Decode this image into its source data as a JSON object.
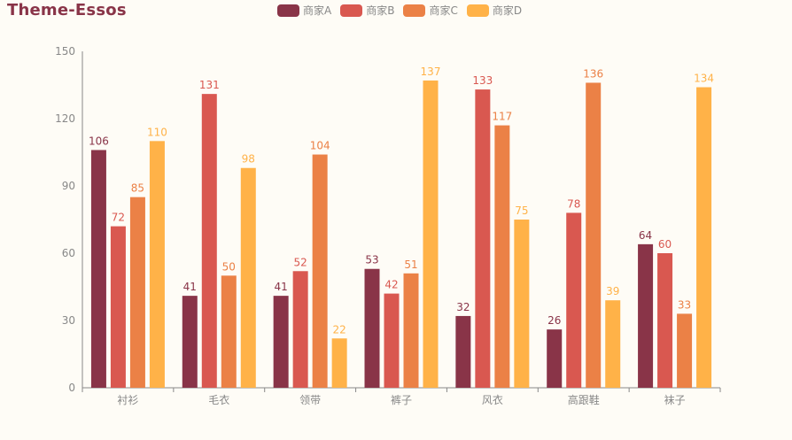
{
  "title": "Theme-Essos",
  "colors": {
    "background": "#fefcf6",
    "title": "#893448",
    "axis_text": "#888888",
    "axis_line": "#888888"
  },
  "chart_data": {
    "type": "bar",
    "title": "Theme-Essos",
    "categories": [
      "衬衫",
      "毛衣",
      "领带",
      "裤子",
      "风衣",
      "高跟鞋",
      "袜子"
    ],
    "series": [
      {
        "name": "商家A",
        "color": "#893448",
        "values": [
          106,
          41,
          41,
          53,
          32,
          26,
          64
        ]
      },
      {
        "name": "商家B",
        "color": "#d95850",
        "values": [
          72,
          131,
          52,
          42,
          133,
          78,
          60
        ]
      },
      {
        "name": "商家C",
        "color": "#eb8146",
        "values": [
          85,
          50,
          104,
          51,
          117,
          136,
          33
        ]
      },
      {
        "name": "商家D",
        "color": "#ffb248",
        "values": [
          110,
          98,
          22,
          137,
          75,
          39,
          134
        ]
      }
    ],
    "ylim": [
      0,
      150
    ],
    "yticks": [
      0,
      30,
      60,
      90,
      120,
      150
    ],
    "xlabel": "",
    "ylabel": "",
    "legend_position": "top-center",
    "data_labels": true,
    "grid": false
  }
}
